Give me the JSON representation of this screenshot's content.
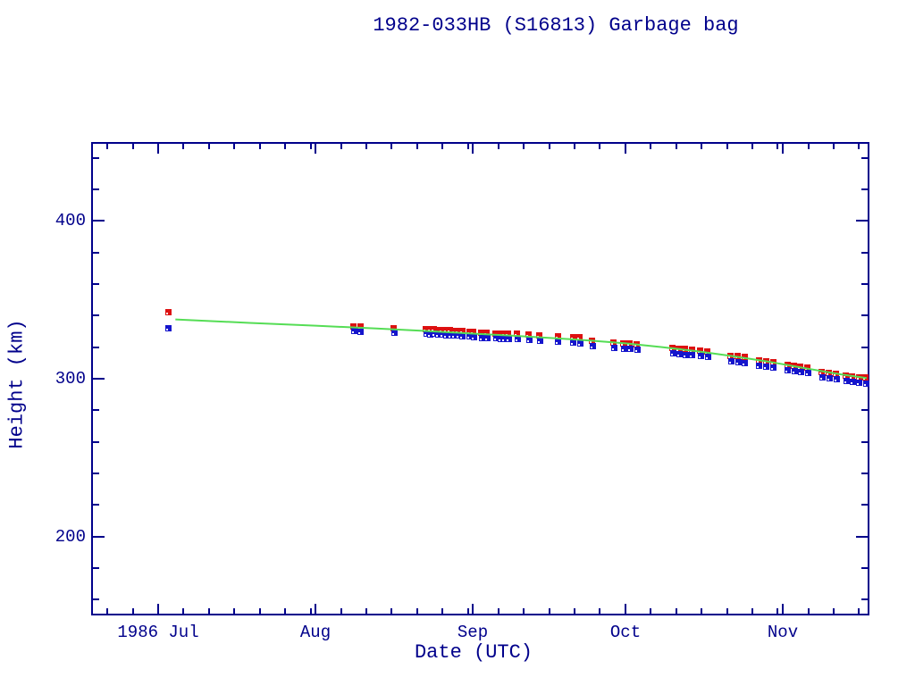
{
  "title": "1982-033HB (S16813) Garbage bag",
  "colors": {
    "background": "#ffffff",
    "axis": "#00008b",
    "text": "#00008b",
    "apogee_red": "#dd1111",
    "perigee_blue": "#1515cc",
    "fit_line_green": "#55dd55"
  },
  "chart_data": {
    "type": "scatter",
    "title": "1982-033HB (S16813) Garbage bag",
    "xlabel": "Date (UTC)",
    "ylabel": "Height (km)",
    "grid": false,
    "legend": false,
    "x_axis": {
      "unit": "day_of_year_1986",
      "range_doy": [
        168.8,
        322.05
      ],
      "major_ticks": [
        {
          "doy": 182,
          "label": "1986 Jul"
        },
        {
          "doy": 213,
          "label": "Aug"
        },
        {
          "doy": 244,
          "label": "Sep"
        },
        {
          "doy": 274,
          "label": "Oct"
        },
        {
          "doy": 305,
          "label": "Nov"
        }
      ],
      "minor_tick_doys": [
        172,
        177,
        187,
        192,
        197,
        202,
        207,
        212,
        218,
        223,
        228,
        233,
        238,
        243,
        249,
        254,
        259,
        264,
        269,
        279,
        284,
        289,
        294,
        299,
        304,
        310,
        315,
        320
      ]
    },
    "y_axis": {
      "range_km": [
        150,
        450
      ],
      "major_ticks": [
        {
          "value": 200,
          "label": "200"
        },
        {
          "value": 300,
          "label": "300"
        },
        {
          "value": 400,
          "label": "400"
        }
      ],
      "minor_tick_values": [
        160,
        180,
        220,
        240,
        260,
        280,
        320,
        340,
        360,
        380,
        420,
        440
      ]
    },
    "series": [
      {
        "name": "apogee-height-red",
        "type": "scatter",
        "marker": "filled-square",
        "color": "#dd1111",
        "points": [
          [
            184.0,
            342.3
          ],
          [
            220.4,
            333.6
          ],
          [
            221.7,
            333.4
          ],
          [
            228.3,
            332.4
          ],
          [
            234.6,
            331.8
          ],
          [
            235.4,
            331.6
          ],
          [
            236.2,
            331.5
          ],
          [
            237.0,
            331.3
          ],
          [
            237.8,
            331.2
          ],
          [
            238.6,
            331.0
          ],
          [
            239.4,
            330.9
          ],
          [
            240.2,
            330.7
          ],
          [
            241.0,
            330.6
          ],
          [
            241.8,
            330.4
          ],
          [
            243.2,
            330.2
          ],
          [
            244.0,
            330.0
          ],
          [
            245.6,
            329.5
          ],
          [
            246.6,
            329.3
          ],
          [
            248.4,
            329.1
          ],
          [
            249.2,
            329.0
          ],
          [
            250.0,
            328.9
          ],
          [
            250.8,
            328.8
          ],
          [
            252.6,
            328.6
          ],
          [
            254.9,
            328.3
          ],
          [
            257.0,
            328.0
          ],
          [
            260.6,
            327.3
          ],
          [
            263.6,
            326.8
          ],
          [
            264.9,
            326.6
          ],
          [
            267.4,
            324.3
          ],
          [
            271.6,
            323.3
          ],
          [
            273.5,
            322.8
          ],
          [
            274.8,
            322.5
          ],
          [
            276.2,
            322.1
          ],
          [
            283.2,
            319.6
          ],
          [
            284.4,
            319.3
          ],
          [
            285.7,
            319.0
          ],
          [
            287.0,
            318.6
          ],
          [
            288.7,
            318.0
          ],
          [
            290.1,
            317.5
          ],
          [
            294.6,
            314.9
          ],
          [
            296.0,
            314.5
          ],
          [
            297.4,
            314.1
          ],
          [
            300.2,
            311.9
          ],
          [
            301.6,
            311.5
          ],
          [
            303.0,
            311.0
          ],
          [
            305.8,
            309.0
          ],
          [
            307.1,
            308.5
          ],
          [
            308.4,
            308.0
          ],
          [
            309.8,
            307.4
          ],
          [
            312.6,
            304.6
          ],
          [
            314.0,
            304.1
          ],
          [
            315.4,
            303.5
          ],
          [
            317.3,
            302.3
          ],
          [
            318.6,
            301.8
          ],
          [
            319.9,
            301.3
          ],
          [
            321.2,
            300.9
          ]
        ]
      },
      {
        "name": "perigee-height-blue",
        "type": "scatter",
        "marker": "filled-square",
        "color": "#1515cc",
        "points": [
          [
            184.0,
            332.5
          ],
          [
            220.5,
            330.3
          ],
          [
            221.8,
            330.1
          ],
          [
            228.4,
            329.2
          ],
          [
            234.7,
            329.0
          ],
          [
            235.5,
            328.5
          ],
          [
            236.3,
            328.7
          ],
          [
            237.1,
            328.2
          ],
          [
            237.9,
            328.4
          ],
          [
            238.7,
            327.9
          ],
          [
            239.5,
            327.7
          ],
          [
            240.3,
            327.9
          ],
          [
            241.1,
            327.5
          ],
          [
            241.9,
            327.3
          ],
          [
            243.3,
            327.0
          ],
          [
            244.1,
            326.7
          ],
          [
            245.7,
            326.3
          ],
          [
            246.7,
            326.1
          ],
          [
            248.5,
            325.9
          ],
          [
            249.3,
            325.7
          ],
          [
            250.1,
            325.6
          ],
          [
            250.9,
            325.4
          ],
          [
            252.7,
            325.2
          ],
          [
            255.0,
            324.8
          ],
          [
            257.1,
            324.5
          ],
          [
            260.7,
            323.7
          ],
          [
            263.7,
            323.1
          ],
          [
            265.0,
            322.9
          ],
          [
            267.5,
            321.0
          ],
          [
            271.7,
            320.0
          ],
          [
            273.6,
            319.4
          ],
          [
            274.9,
            319.1
          ],
          [
            276.3,
            318.7
          ],
          [
            283.3,
            316.2
          ],
          [
            284.5,
            315.9
          ],
          [
            285.8,
            315.5
          ],
          [
            287.1,
            315.1
          ],
          [
            288.8,
            314.5
          ],
          [
            290.2,
            313.9
          ],
          [
            294.7,
            311.3
          ],
          [
            296.1,
            310.8
          ],
          [
            297.5,
            310.3
          ],
          [
            300.3,
            308.3
          ],
          [
            301.7,
            307.9
          ],
          [
            303.1,
            307.4
          ],
          [
            305.9,
            305.5
          ],
          [
            307.2,
            305.0
          ],
          [
            308.5,
            304.4
          ],
          [
            309.9,
            303.8
          ],
          [
            312.7,
            301.0
          ],
          [
            314.1,
            300.5
          ],
          [
            315.5,
            299.9
          ],
          [
            317.4,
            298.6
          ],
          [
            318.7,
            298.1
          ],
          [
            320.0,
            297.5
          ],
          [
            321.3,
            297.0
          ]
        ]
      },
      {
        "name": "decay-fit-line-green",
        "type": "line",
        "color": "#55dd55",
        "points": [
          [
            185.4,
            337.6
          ],
          [
            200,
            335.4
          ],
          [
            213,
            333.6
          ],
          [
            225,
            331.8
          ],
          [
            235,
            330.2
          ],
          [
            244,
            328.6
          ],
          [
            252,
            327.2
          ],
          [
            260,
            325.7
          ],
          [
            267,
            324.2
          ],
          [
            274,
            322.4
          ],
          [
            281,
            320.1
          ],
          [
            288,
            317.5
          ],
          [
            295,
            314.4
          ],
          [
            302,
            310.9
          ],
          [
            309,
            306.9
          ],
          [
            316,
            303.0
          ],
          [
            321.5,
            300.4
          ]
        ]
      }
    ]
  }
}
